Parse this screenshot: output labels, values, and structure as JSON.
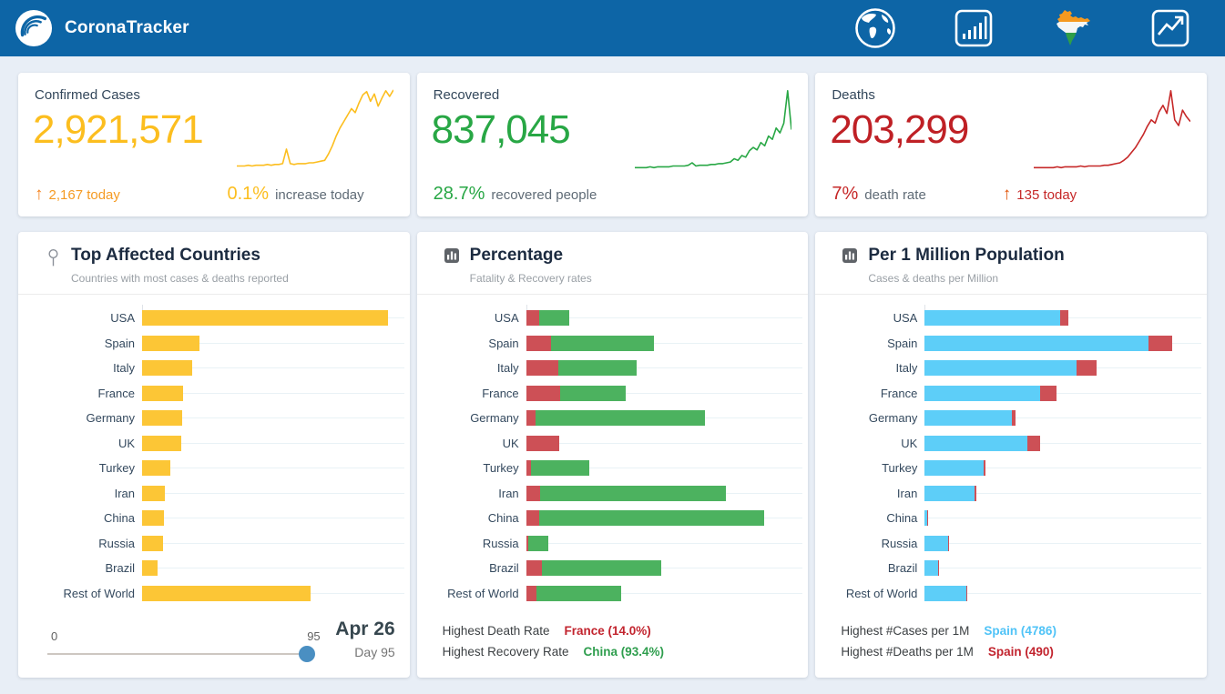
{
  "navbar": {
    "brand": "CoronaTracker",
    "icons": [
      {
        "name": "world-map-icon"
      },
      {
        "name": "country-stats-icon"
      },
      {
        "name": "india-map-icon"
      },
      {
        "name": "trend-analysis-icon"
      }
    ]
  },
  "stats": [
    {
      "title": "Confirmed Cases",
      "value": "2,921,571",
      "value_color": "#fcbe1f",
      "arrow": "↑",
      "arrow_color": "#f57f17",
      "today": "2,167 today",
      "today_color": "#f59b23",
      "rate": "0.1%",
      "rate_color": "#fcbe1f",
      "rate_label": "increase today"
    },
    {
      "title": "Recovered",
      "value": "837,045",
      "value_color": "#28a745",
      "rate": "28.7%",
      "rate_color": "#28a745",
      "rate_label": "recovered people"
    },
    {
      "title": "Deaths",
      "value": "203,299",
      "value_color": "#bf2025",
      "arrow": "↑",
      "arrow_color": "#e05206",
      "today": "135 today",
      "today_color": "#c62828",
      "rate": "7%",
      "rate_color": "#c62828",
      "rate_label": "death rate"
    }
  ],
  "slider": {
    "min_label": "0",
    "max_label": "95",
    "value": 95,
    "max": 95,
    "date": "Apr 26",
    "day": "Day 95",
    "handle_color": "#4a8fc2"
  },
  "panels": {
    "percentage_footer": [
      {
        "label": "Highest Death Rate",
        "value": "France (14.0%)",
        "color": "#c2242e"
      },
      {
        "label": "Highest Recovery Rate",
        "value": "China (93.4%)",
        "color": "#2f9e4e"
      }
    ],
    "per1m_footer": [
      {
        "label": "Highest #Cases per 1M",
        "value": "Spain (4786)",
        "color": "#4fc3f7"
      },
      {
        "label": "Highest #Deaths per 1M",
        "value": "Spain (490)",
        "color": "#c2242e"
      }
    ]
  },
  "chart_data": [
    {
      "type": "bar",
      "title": "Top Affected Countries",
      "subtitle": "Countries with most cases & deaths reported",
      "categories": [
        "USA",
        "Spain",
        "Italy",
        "France",
        "Germany",
        "UK",
        "Turkey",
        "Iran",
        "China",
        "Russia",
        "Brazil",
        "Rest of World"
      ],
      "xmax": 1000000,
      "grid": false,
      "legend": "none",
      "series": [
        {
          "name": "confirmed-cases",
          "color": "#fcc636",
          "values": [
            965000,
            226600,
            197700,
            162200,
            157800,
            152800,
            110100,
            90500,
            84300,
            81000,
            61900,
            663000
          ]
        }
      ]
    },
    {
      "type": "stacked-bar",
      "title": "Percentage",
      "subtitle": "Fatality & Recovery rates",
      "categories": [
        "USA",
        "Spain",
        "Italy",
        "France",
        "Germany",
        "UK",
        "Turkey",
        "Iran",
        "China",
        "Russia",
        "Brazil",
        "Rest of World"
      ],
      "xmax": 112,
      "xunit": "%",
      "grid": false,
      "legend": "none",
      "series": [
        {
          "name": "fatality-rate",
          "color": "#cd5056",
          "values": [
            5.4,
            10.2,
            13.5,
            14.0,
            3.8,
            13.7,
            2.1,
            6.0,
            5.5,
            0.9,
            6.5,
            4.4
          ]
        },
        {
          "name": "recovery-rate",
          "color": "#4cb25f",
          "values": [
            12.4,
            43.0,
            32.5,
            27.6,
            70.5,
            0,
            24.2,
            77.0,
            93.4,
            8.3,
            49.6,
            35.0
          ]
        }
      ]
    },
    {
      "type": "stacked-bar",
      "title": "Per 1 Million Population",
      "subtitle": "Cases & deaths per Million",
      "categories": [
        "USA",
        "Spain",
        "Italy",
        "France",
        "Germany",
        "UK",
        "Turkey",
        "Iran",
        "China",
        "Russia",
        "Brazil",
        "Rest of World"
      ],
      "xmax": 5750,
      "grid": false,
      "legend": "none",
      "series": [
        {
          "name": "cases-per-1m",
          "color": "#5dcef8",
          "values": [
            2900,
            4786,
            3236,
            2464,
            1866,
            2187,
            1267,
            1062,
            45,
            502,
            283,
            890
          ]
        },
        {
          "name": "deaths-per-1m",
          "color": "#cd5056",
          "values": [
            174,
            490,
            431,
            347,
            64,
            283,
            26,
            45,
            3,
            5,
            10,
            25
          ]
        }
      ]
    },
    {
      "type": "line",
      "title": "Confirmed cases trend (normalized %)",
      "color": "#fcbe1f",
      "values": [
        5,
        5,
        5,
        6,
        5,
        6,
        6,
        6,
        7,
        6,
        7,
        7,
        8,
        26,
        8,
        7,
        8,
        8,
        8,
        9,
        9,
        10,
        11,
        12,
        20,
        30,
        42,
        52,
        60,
        68,
        76,
        71,
        83,
        93,
        97,
        85,
        94,
        79,
        89,
        98,
        91,
        99
      ]
    },
    {
      "type": "line",
      "title": "Recovered trend (normalized %)",
      "color": "#28a745",
      "values": [
        3,
        3,
        3,
        3,
        4,
        3,
        4,
        4,
        4,
        4,
        5,
        5,
        5,
        5,
        6,
        9,
        5,
        6,
        6,
        6,
        7,
        7,
        8,
        8,
        9,
        10,
        14,
        12,
        18,
        16,
        24,
        28,
        25,
        34,
        30,
        42,
        38,
        52,
        46,
        58,
        98,
        50
      ]
    },
    {
      "type": "line",
      "title": "Deaths trend (normalized %)",
      "color": "#c62828",
      "values": [
        3,
        3,
        3,
        3,
        3,
        3,
        4,
        3,
        4,
        4,
        4,
        4,
        5,
        4,
        5,
        5,
        5,
        5,
        6,
        6,
        7,
        8,
        9,
        12,
        16,
        22,
        28,
        36,
        44,
        54,
        62,
        58,
        72,
        80,
        70,
        98,
        62,
        55,
        74,
        66,
        60
      ]
    }
  ]
}
